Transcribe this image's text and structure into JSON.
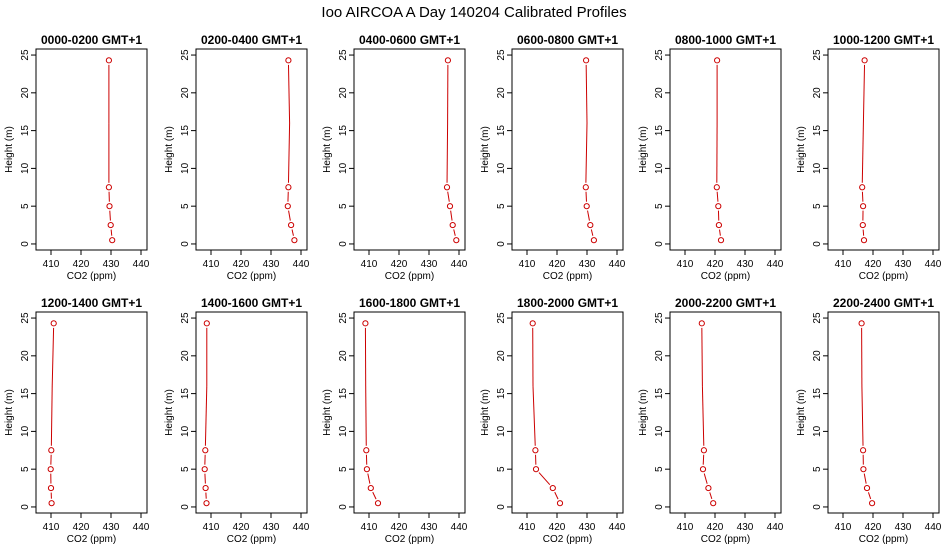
{
  "figure_title": "Ioo AIRCOA A  Day 140204  Calibrated Profiles",
  "colors": {
    "series": "#cc0000",
    "axis": "#000000",
    "background": "#ffffff"
  },
  "chart_data": [
    {
      "type": "line",
      "title": "0000-0200 GMT+1",
      "xlabel": "CO2 (ppm)",
      "ylabel": "Height (m)",
      "xlim": [
        405,
        442
      ],
      "ylim": [
        -0.8,
        25.8
      ],
      "xticks": [
        "410",
        "420",
        "430",
        "440"
      ],
      "yticks": [
        "0",
        "5",
        "10",
        "15",
        "20",
        "25"
      ],
      "series": [
        {
          "x": [
            430.4,
            429.9,
            429.5,
            429.3,
            429.3,
            429.3
          ],
          "y": [
            0.5,
            2.5,
            5,
            7.5,
            16,
            24.3
          ]
        }
      ]
    },
    {
      "type": "line",
      "title": "0200-0400 GMT+1",
      "xlabel": "CO2 (ppm)",
      "ylabel": "Height (m)",
      "xlim": [
        405,
        442
      ],
      "ylim": [
        -0.8,
        25.8
      ],
      "xticks": [
        "410",
        "420",
        "430",
        "440"
      ],
      "yticks": [
        "0",
        "5",
        "10",
        "15",
        "20",
        "25"
      ],
      "series": [
        {
          "x": [
            437.8,
            436.7,
            435.6,
            435.8,
            436.2,
            435.8
          ],
          "y": [
            0.5,
            2.5,
            5,
            7.5,
            16,
            24.3
          ]
        }
      ]
    },
    {
      "type": "line",
      "title": "0400-0600 GMT+1",
      "xlabel": "CO2 (ppm)",
      "ylabel": "Height (m)",
      "xlim": [
        405,
        442
      ],
      "ylim": [
        -0.8,
        25.8
      ],
      "xticks": [
        "410",
        "420",
        "430",
        "440"
      ],
      "yticks": [
        "0",
        "5",
        "10",
        "15",
        "20",
        "25"
      ],
      "series": [
        {
          "x": [
            439.1,
            437.9,
            437.0,
            436.0,
            436.2,
            436.3
          ],
          "y": [
            0.5,
            2.5,
            5,
            7.5,
            16,
            24.3
          ]
        }
      ]
    },
    {
      "type": "line",
      "title": "0600-0800 GMT+1",
      "xlabel": "CO2 (ppm)",
      "ylabel": "Height (m)",
      "xlim": [
        405,
        442
      ],
      "ylim": [
        -0.8,
        25.8
      ],
      "xticks": [
        "410",
        "420",
        "430",
        "440"
      ],
      "yticks": [
        "0",
        "5",
        "10",
        "15",
        "20",
        "25"
      ],
      "series": [
        {
          "x": [
            432.3,
            431.1,
            429.9,
            429.6,
            430.0,
            429.7
          ],
          "y": [
            0.5,
            2.5,
            5,
            7.5,
            16,
            24.3
          ]
        }
      ]
    },
    {
      "type": "line",
      "title": "0800-1000 GMT+1",
      "xlabel": "CO2 (ppm)",
      "ylabel": "Height (m)",
      "xlim": [
        405,
        442
      ],
      "ylim": [
        -0.8,
        25.8
      ],
      "xticks": [
        "410",
        "420",
        "430",
        "440"
      ],
      "yticks": [
        "0",
        "5",
        "10",
        "15",
        "20",
        "25"
      ],
      "series": [
        {
          "x": [
            422.0,
            421.3,
            421.1,
            420.6,
            420.7,
            420.7
          ],
          "y": [
            0.5,
            2.5,
            5,
            7.5,
            16,
            24.3
          ]
        }
      ]
    },
    {
      "type": "line",
      "title": "1000-1200 GMT+1",
      "xlabel": "CO2 (ppm)",
      "ylabel": "Height (m)",
      "xlim": [
        405,
        442
      ],
      "ylim": [
        -0.8,
        25.8
      ],
      "xticks": [
        "410",
        "420",
        "430",
        "440"
      ],
      "yticks": [
        "0",
        "5",
        "10",
        "15",
        "20",
        "25"
      ],
      "series": [
        {
          "x": [
            417.0,
            416.6,
            416.7,
            416.4,
            416.8,
            417.2
          ],
          "y": [
            0.5,
            2.5,
            5,
            7.5,
            16,
            24.3
          ]
        }
      ]
    },
    {
      "type": "line",
      "title": "1200-1400 GMT+1",
      "xlabel": "CO2 (ppm)",
      "ylabel": "Height (m)",
      "xlim": [
        405,
        442
      ],
      "ylim": [
        -0.8,
        25.8
      ],
      "xticks": [
        "410",
        "420",
        "430",
        "440"
      ],
      "yticks": [
        "0",
        "5",
        "10",
        "15",
        "20",
        "25"
      ],
      "series": [
        {
          "x": [
            410.2,
            410.0,
            409.9,
            410.1,
            410.4,
            410.9
          ],
          "y": [
            0.5,
            2.5,
            5,
            7.5,
            16,
            24.3
          ]
        }
      ]
    },
    {
      "type": "line",
      "title": "1400-1600 GMT+1",
      "xlabel": "CO2 (ppm)",
      "ylabel": "Height (m)",
      "xlim": [
        405,
        442
      ],
      "ylim": [
        -0.8,
        25.8
      ],
      "xticks": [
        "410",
        "420",
        "430",
        "440"
      ],
      "yticks": [
        "0",
        "5",
        "10",
        "15",
        "20",
        "25"
      ],
      "series": [
        {
          "x": [
            408.5,
            408.2,
            407.9,
            408.1,
            408.6,
            408.6
          ],
          "y": [
            0.5,
            2.5,
            5,
            7.5,
            16,
            24.3
          ]
        }
      ]
    },
    {
      "type": "line",
      "title": "1600-1800 GMT+1",
      "xlabel": "CO2 (ppm)",
      "ylabel": "Height (m)",
      "xlim": [
        405,
        442
      ],
      "ylim": [
        -0.8,
        25.8
      ],
      "xticks": [
        "410",
        "420",
        "430",
        "440"
      ],
      "yticks": [
        "0",
        "5",
        "10",
        "15",
        "20",
        "25"
      ],
      "series": [
        {
          "x": [
            413.0,
            410.6,
            409.3,
            409.1,
            408.9,
            408.8
          ],
          "y": [
            0.5,
            2.5,
            5,
            7.5,
            16,
            24.3
          ]
        }
      ]
    },
    {
      "type": "line",
      "title": "1800-2000 GMT+1",
      "xlabel": "CO2 (ppm)",
      "ylabel": "Height (m)",
      "xlim": [
        405,
        442
      ],
      "ylim": [
        -0.8,
        25.8
      ],
      "xticks": [
        "410",
        "420",
        "430",
        "440"
      ],
      "yticks": [
        "0",
        "5",
        "10",
        "15",
        "20",
        "25"
      ],
      "series": [
        {
          "x": [
            421.0,
            418.6,
            413.0,
            412.8,
            412.0,
            411.9
          ],
          "y": [
            0.5,
            2.5,
            5,
            7.5,
            16,
            24.3
          ]
        }
      ]
    },
    {
      "type": "line",
      "title": "2000-2200 GMT+1",
      "xlabel": "CO2 (ppm)",
      "ylabel": "Height (m)",
      "xlim": [
        405,
        442
      ],
      "ylim": [
        -0.8,
        25.8
      ],
      "xticks": [
        "410",
        "420",
        "430",
        "440"
      ],
      "yticks": [
        "0",
        "5",
        "10",
        "15",
        "20",
        "25"
      ],
      "series": [
        {
          "x": [
            419.4,
            417.8,
            416.0,
            416.3,
            415.8,
            415.6
          ],
          "y": [
            0.5,
            2.5,
            5,
            7.5,
            16,
            24.3
          ]
        }
      ]
    },
    {
      "type": "line",
      "title": "2200-2400 GMT+1",
      "xlabel": "CO2 (ppm)",
      "ylabel": "Height (m)",
      "xlim": [
        405,
        442
      ],
      "ylim": [
        -0.8,
        25.8
      ],
      "xticks": [
        "410",
        "420",
        "430",
        "440"
      ],
      "yticks": [
        "0",
        "5",
        "10",
        "15",
        "20",
        "25"
      ],
      "series": [
        {
          "x": [
            419.7,
            418.0,
            416.8,
            416.7,
            416.3,
            416.2
          ],
          "y": [
            0.5,
            2.5,
            5,
            7.5,
            16,
            24.3
          ]
        }
      ]
    }
  ]
}
